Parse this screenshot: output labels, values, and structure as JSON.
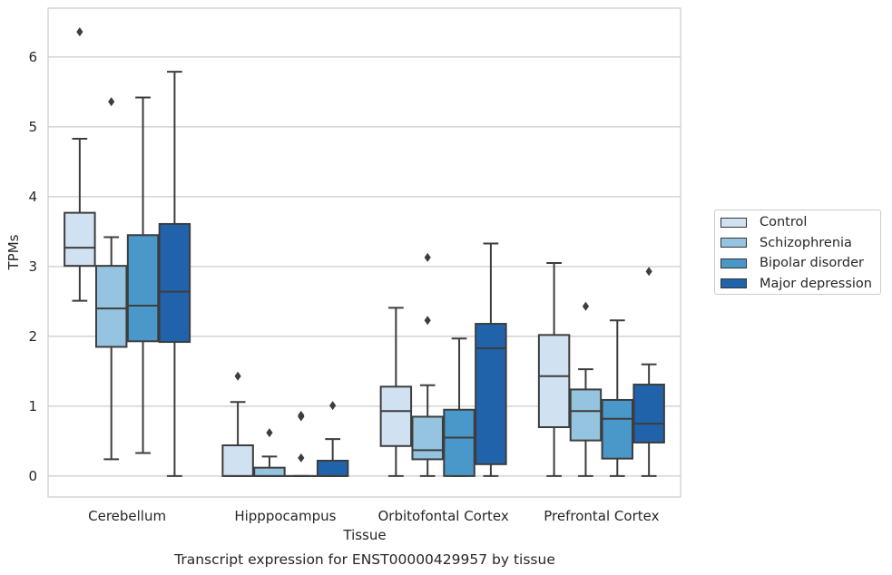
{
  "chart_data": {
    "type": "box",
    "title": "Transcript expression for ENST00000429957 by tissue",
    "xlabel": "Tissue",
    "ylabel": "TPMs",
    "ylim": [
      -0.3,
      6.7
    ],
    "yticks": [
      "0",
      "1",
      "2",
      "3",
      "4",
      "5",
      "6"
    ],
    "grid": "horizontal",
    "legend_position": "right",
    "categories": [
      "Cerebellum",
      "Hipppocampus",
      "Orbitofontal Cortex",
      "Prefrontal Cortex"
    ],
    "series": [
      {
        "name": "Control",
        "color": "#d0e1f2",
        "boxes": [
          {
            "q1": 3.01,
            "median": 3.27,
            "q3": 3.77,
            "whisker_low": 2.51,
            "whisker_high": 4.83,
            "outliers": [
              6.36
            ]
          },
          {
            "q1": 0.0,
            "median": 0.0,
            "q3": 0.44,
            "whisker_low": 0.0,
            "whisker_high": 1.06,
            "outliers": [
              1.43
            ]
          },
          {
            "q1": 0.43,
            "median": 0.93,
            "q3": 1.28,
            "whisker_low": 0.0,
            "whisker_high": 2.41,
            "outliers": []
          },
          {
            "q1": 0.7,
            "median": 1.43,
            "q3": 2.02,
            "whisker_low": 0.0,
            "whisker_high": 3.05,
            "outliers": []
          }
        ]
      },
      {
        "name": "Schizophrenia",
        "color": "#94c4df",
        "boxes": [
          {
            "q1": 1.85,
            "median": 2.4,
            "q3": 3.01,
            "whisker_low": 0.24,
            "whisker_high": 3.42,
            "outliers": [
              5.36
            ]
          },
          {
            "q1": 0.0,
            "median": 0.0,
            "q3": 0.12,
            "whisker_low": 0.0,
            "whisker_high": 0.28,
            "outliers": [
              0.62
            ]
          },
          {
            "q1": 0.24,
            "median": 0.37,
            "q3": 0.85,
            "whisker_low": 0.0,
            "whisker_high": 1.3,
            "outliers": [
              2.23,
              3.13
            ]
          },
          {
            "q1": 0.51,
            "median": 0.93,
            "q3": 1.24,
            "whisker_low": 0.0,
            "whisker_high": 1.53,
            "outliers": [
              2.43
            ]
          }
        ]
      },
      {
        "name": "Bipolar disorder",
        "color": "#4a98c9",
        "boxes": [
          {
            "q1": 1.93,
            "median": 2.44,
            "q3": 3.45,
            "whisker_low": 0.33,
            "whisker_high": 5.42,
            "outliers": []
          },
          {
            "q1": 0.0,
            "median": 0.0,
            "q3": 0.0,
            "whisker_low": 0.0,
            "whisker_high": 0.0,
            "outliers": [
              0.26,
              0.85,
              0.87
            ]
          },
          {
            "q1": 0.0,
            "median": 0.55,
            "q3": 0.95,
            "whisker_low": 0.0,
            "whisker_high": 1.97,
            "outliers": []
          },
          {
            "q1": 0.25,
            "median": 0.82,
            "q3": 1.09,
            "whisker_low": 0.0,
            "whisker_high": 2.23,
            "outliers": []
          }
        ]
      },
      {
        "name": "Major depression",
        "color": "#2163aa",
        "boxes": [
          {
            "q1": 1.92,
            "median": 2.64,
            "q3": 3.61,
            "whisker_low": 0.0,
            "whisker_high": 5.79,
            "outliers": []
          },
          {
            "q1": 0.0,
            "median": 0.0,
            "q3": 0.22,
            "whisker_low": 0.0,
            "whisker_high": 0.53,
            "outliers": [
              1.01
            ]
          },
          {
            "q1": 0.17,
            "median": 1.83,
            "q3": 2.18,
            "whisker_low": 0.0,
            "whisker_high": 3.33,
            "outliers": []
          },
          {
            "q1": 0.48,
            "median": 0.75,
            "q3": 1.31,
            "whisker_low": 0.0,
            "whisker_high": 1.6,
            "outliers": [
              2.93
            ]
          }
        ]
      }
    ]
  }
}
